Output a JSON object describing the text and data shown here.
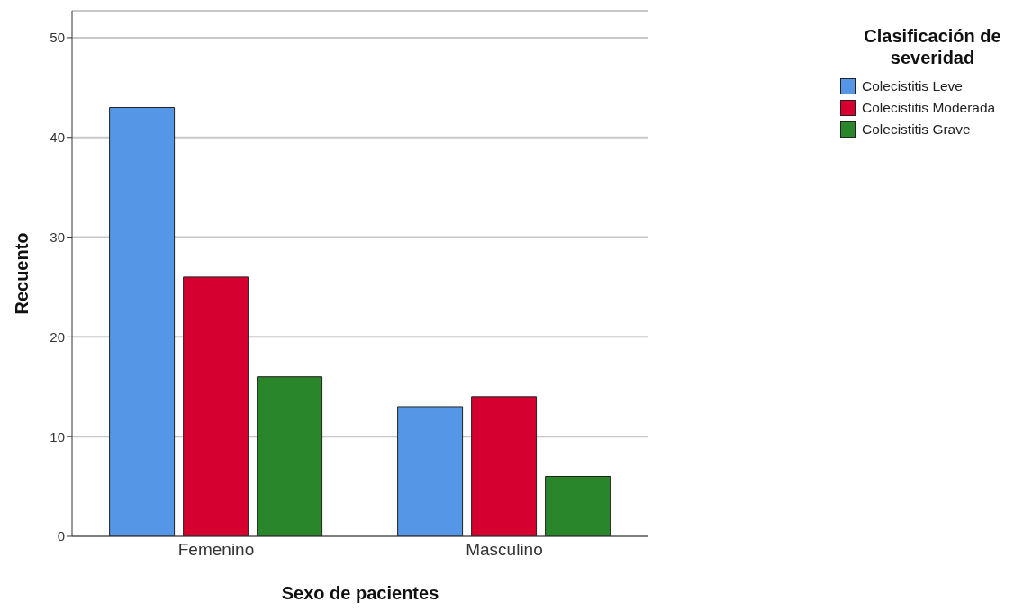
{
  "chart_data": {
    "type": "bar",
    "xlabel": "Sexo de pacientes",
    "ylabel": "Recuento",
    "legend_title": "Clasificación de severidad",
    "categories": [
      "Femenino",
      "Masculino"
    ],
    "series": [
      {
        "name": "Colecistitis Leve",
        "color": "#5596e6",
        "values": [
          43,
          13
        ]
      },
      {
        "name": "Colecistitis Moderada",
        "color": "#d5002f",
        "values": [
          26,
          14
        ]
      },
      {
        "name": "Colecistitis Grave",
        "color": "#2a862a",
        "values": [
          16,
          6
        ]
      }
    ],
    "ylim": [
      0,
      52.7
    ],
    "yticks": [
      0,
      10,
      20,
      30,
      40,
      50
    ],
    "grid": "y",
    "legend": "top right"
  }
}
